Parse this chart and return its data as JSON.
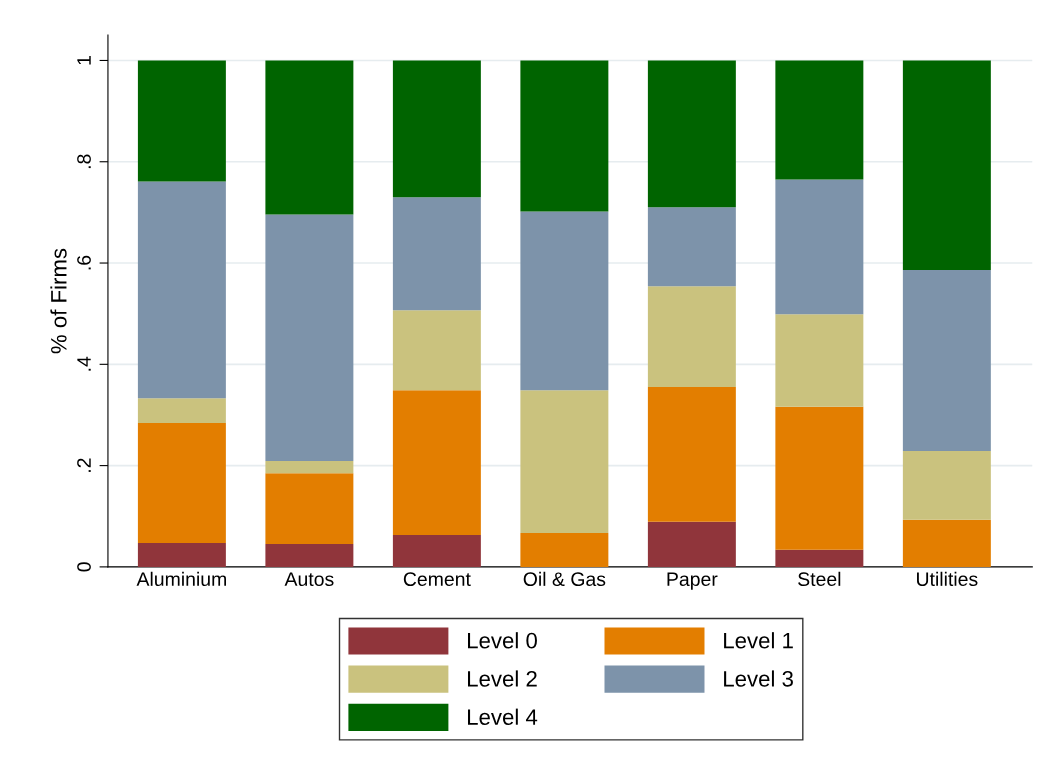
{
  "chart_data": {
    "type": "bar",
    "stacked": true,
    "ylabel": "% of Firms",
    "categories": [
      "Aluminium",
      "Autos",
      "Cement",
      "Oil & Gas",
      "Paper",
      "Steel",
      "Utilities"
    ],
    "series": [
      {
        "name": "Level 0",
        "color": "#90353b",
        "values": [
          0.047,
          0.045,
          0.063,
          0,
          0.089,
          0.034,
          0
        ]
      },
      {
        "name": "Level 1",
        "color": "#e37e00",
        "values": [
          0.237,
          0.14,
          0.286,
          0.067,
          0.266,
          0.282,
          0.093
        ]
      },
      {
        "name": "Level 2",
        "color": "#cac27e",
        "values": [
          0.049,
          0.024,
          0.158,
          0.282,
          0.199,
          0.183,
          0.136
        ]
      },
      {
        "name": "Level 3",
        "color": "#7d93aa",
        "values": [
          0.428,
          0.487,
          0.223,
          0.353,
          0.156,
          0.266,
          0.357
        ]
      },
      {
        "name": "Level 4",
        "color": "#006400",
        "values": [
          0.239,
          0.304,
          0.27,
          0.298,
          0.29,
          0.235,
          0.414
        ]
      }
    ],
    "ylim": [
      0,
      1.05
    ],
    "yticks": [
      0,
      {
        "value": 0.2,
        "label": ".2"
      },
      {
        "value": 0.4,
        "label": ".4"
      },
      {
        "value": 0.6,
        "label": ".6"
      },
      {
        "value": 0.8,
        "label": ".8"
      },
      1
    ],
    "grid": "y",
    "legend": "bottom"
  }
}
